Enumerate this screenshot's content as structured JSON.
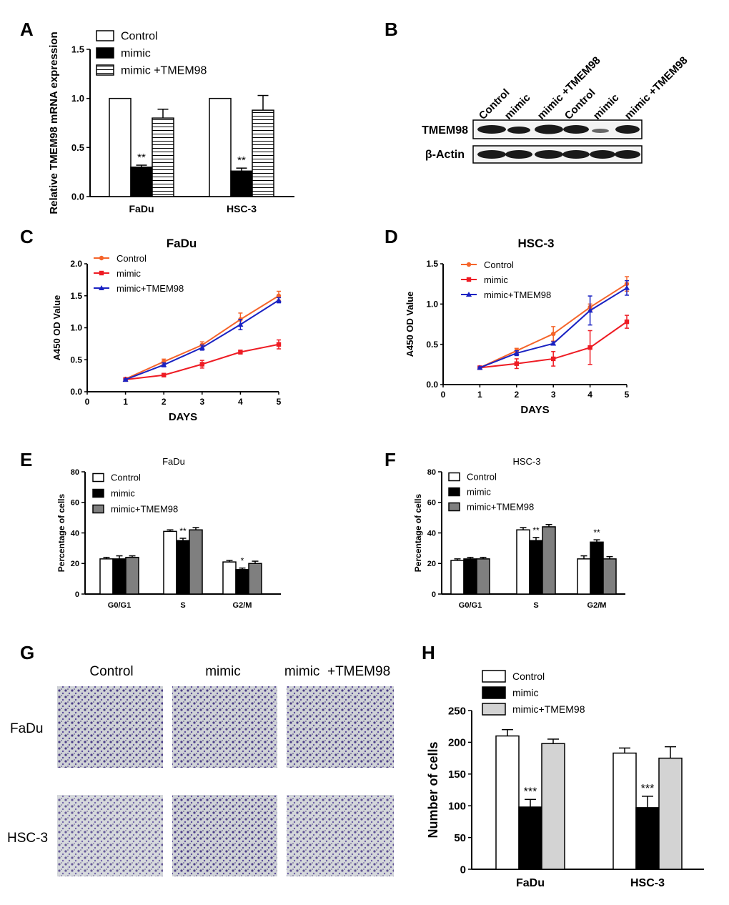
{
  "panel_labels": {
    "a": "A",
    "b": "B",
    "c": "C",
    "d": "D",
    "e": "E",
    "f": "F",
    "g": "G",
    "h": "H"
  },
  "chart_data": [
    {
      "id": "A",
      "type": "bar",
      "title": "",
      "xlabel": "",
      "ylabel": "Relative TMEM98 mRNA expression",
      "categories": [
        "FaDu",
        "HSC-3"
      ],
      "series": [
        {
          "name": "Control",
          "values": [
            1.0,
            1.0
          ],
          "errors": [
            0,
            0
          ]
        },
        {
          "name": "mimic",
          "values": [
            0.3,
            0.26
          ],
          "errors": [
            0.02,
            0.03
          ]
        },
        {
          "name": "mimic +TMEM98",
          "values": [
            0.8,
            0.88
          ],
          "errors": [
            0.09,
            0.15
          ]
        }
      ],
      "significance": [
        {
          "category": "FaDu",
          "series": "mimic",
          "label": "**"
        },
        {
          "category": "HSC-3",
          "series": "mimic",
          "label": "**"
        }
      ],
      "ylim": [
        0,
        1.5
      ],
      "yticks": [
        "0.0",
        "0.5",
        "1.0",
        "1.5"
      ]
    },
    {
      "id": "C",
      "type": "line",
      "title": "FaDu",
      "xlabel": "DAYS",
      "ylabel": "A450 OD Value",
      "x": [
        1,
        2,
        3,
        4,
        5
      ],
      "series": [
        {
          "name": "Control",
          "values": [
            0.2,
            0.47,
            0.73,
            1.13,
            1.5
          ],
          "errors": [
            0.02,
            0.04,
            0.05,
            0.1,
            0.07
          ]
        },
        {
          "name": "mimic",
          "values": [
            0.19,
            0.26,
            0.43,
            0.62,
            0.74
          ],
          "errors": [
            0.01,
            0.02,
            0.06,
            0.03,
            0.07
          ]
        },
        {
          "name": "mimic+TMEM98",
          "values": [
            0.19,
            0.42,
            0.69,
            1.05,
            1.43
          ],
          "errors": [
            0.01,
            0.03,
            0.04,
            0.08,
            0.04
          ]
        }
      ],
      "xlim": [
        0,
        5
      ],
      "ylim": [
        0,
        2.0
      ],
      "xticks": [
        "0",
        "1",
        "2",
        "3",
        "4",
        "5"
      ],
      "yticks": [
        "0.0",
        "0.5",
        "1.0",
        "1.5",
        "2.0"
      ]
    },
    {
      "id": "D",
      "type": "line",
      "title": "HSC-3",
      "xlabel": "DAYS",
      "ylabel": "A450 OD Value",
      "x": [
        1,
        2,
        3,
        4,
        5
      ],
      "series": [
        {
          "name": "Control",
          "values": [
            0.21,
            0.42,
            0.63,
            0.96,
            1.25
          ],
          "errors": [
            0.01,
            0.03,
            0.09,
            0.04,
            0.09
          ]
        },
        {
          "name": "mimic",
          "values": [
            0.21,
            0.26,
            0.32,
            0.46,
            0.78
          ],
          "errors": [
            0.01,
            0.06,
            0.09,
            0.21,
            0.08
          ]
        },
        {
          "name": "mimic+TMEM98",
          "values": [
            0.21,
            0.39,
            0.51,
            0.92,
            1.2
          ],
          "errors": [
            0.01,
            0.03,
            0.02,
            0.18,
            0.09
          ]
        }
      ],
      "xlim": [
        0,
        5
      ],
      "ylim": [
        0,
        1.5
      ],
      "xticks": [
        "0",
        "1",
        "2",
        "3",
        "4",
        "5"
      ],
      "yticks": [
        "0.0",
        "0.5",
        "1.0",
        "1.5"
      ]
    },
    {
      "id": "E",
      "type": "bar",
      "title": "FaDu",
      "xlabel": "",
      "ylabel": "Percentage of cells",
      "categories": [
        "G0/G1",
        "S",
        "G2/M"
      ],
      "series": [
        {
          "name": "Control",
          "values": [
            23,
            41,
            21
          ],
          "errors": [
            1,
            1,
            1
          ]
        },
        {
          "name": "mimic",
          "values": [
            23,
            35,
            16
          ],
          "errors": [
            2,
            1.5,
            1
          ]
        },
        {
          "name": "mimic+TMEM98",
          "values": [
            24,
            42,
            20
          ],
          "errors": [
            1,
            1.5,
            1.5
          ]
        }
      ],
      "significance": [
        {
          "category": "S",
          "series": "mimic",
          "label": "**"
        },
        {
          "category": "G2/M",
          "series": "mimic",
          "label": "*"
        }
      ],
      "ylim": [
        0,
        80
      ],
      "yticks": [
        "0",
        "20",
        "40",
        "60",
        "80"
      ]
    },
    {
      "id": "F",
      "type": "bar",
      "title": "HSC-3",
      "xlabel": "",
      "ylabel": "Percentage of cells",
      "categories": [
        "G0/G1",
        "S",
        "G2/M"
      ],
      "series": [
        {
          "name": "Control",
          "values": [
            22,
            42,
            23
          ],
          "errors": [
            1,
            1.5,
            2
          ]
        },
        {
          "name": "mimic",
          "values": [
            23,
            35,
            34
          ],
          "errors": [
            1,
            2,
            1.5
          ]
        },
        {
          "name": "mimic+TMEM98",
          "values": [
            23,
            44,
            23
          ],
          "errors": [
            1,
            1.5,
            1.5
          ]
        }
      ],
      "significance": [
        {
          "category": "S",
          "series": "mimic",
          "label": "**"
        },
        {
          "category": "G2/M",
          "series": "mimic",
          "label": "**"
        }
      ],
      "ylim": [
        0,
        80
      ],
      "yticks": [
        "0",
        "20",
        "40",
        "60",
        "80"
      ]
    },
    {
      "id": "H",
      "type": "bar",
      "title": "",
      "xlabel": "",
      "ylabel": "Number of cells",
      "categories": [
        "FaDu",
        "HSC-3"
      ],
      "series": [
        {
          "name": "Control",
          "values": [
            210,
            183
          ],
          "errors": [
            10,
            8
          ]
        },
        {
          "name": "mimic",
          "values": [
            98,
            97
          ],
          "errors": [
            12,
            18
          ]
        },
        {
          "name": "mimic+TMEM98",
          "values": [
            198,
            175
          ],
          "errors": [
            7,
            18
          ]
        }
      ],
      "significance": [
        {
          "category": "FaDu",
          "series": "mimic",
          "label": "***"
        },
        {
          "category": "HSC-3",
          "series": "mimic",
          "label": "***"
        }
      ],
      "ylim": [
        0,
        250
      ],
      "yticks": [
        "0",
        "50",
        "100",
        "150",
        "200",
        "250"
      ]
    }
  ],
  "western_blot": {
    "lane_labels": [
      "Control",
      "mimic",
      "mimic +TMEM98",
      "Control",
      "mimic",
      "mimic +TMEM98"
    ],
    "rows": [
      "TMEM98",
      "β-Actin"
    ]
  },
  "transwell": {
    "columns": [
      "Control",
      "mimic",
      "mimic  +TMEM98"
    ],
    "rows": [
      "FaDu",
      "HSC-3"
    ]
  }
}
